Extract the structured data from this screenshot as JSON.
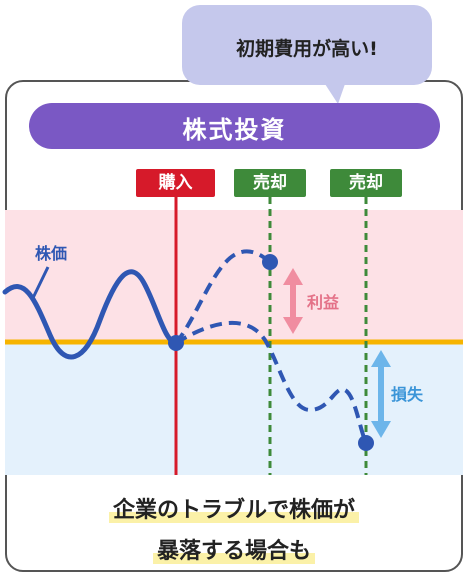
{
  "bubble": {
    "text": "初期費用が高い!"
  },
  "banner": {
    "title": "株式投資"
  },
  "tags": {
    "buy": "購入",
    "sell1": "売却",
    "sell2": "売却"
  },
  "labels": {
    "price": "株価",
    "profit": "利益",
    "loss": "損失"
  },
  "caption": {
    "line1": "企業のトラブルで株価が",
    "line2": "暴落する場合も"
  },
  "colors": {
    "purple": "#7a58c4",
    "bubble": "#c5c8ec",
    "red": "#d61a2a",
    "green": "#3e8a3a",
    "blue": "#2f57b3",
    "pink": "#e47288",
    "lightblue": "#6cb5ea",
    "orange": "#f6b400"
  }
}
